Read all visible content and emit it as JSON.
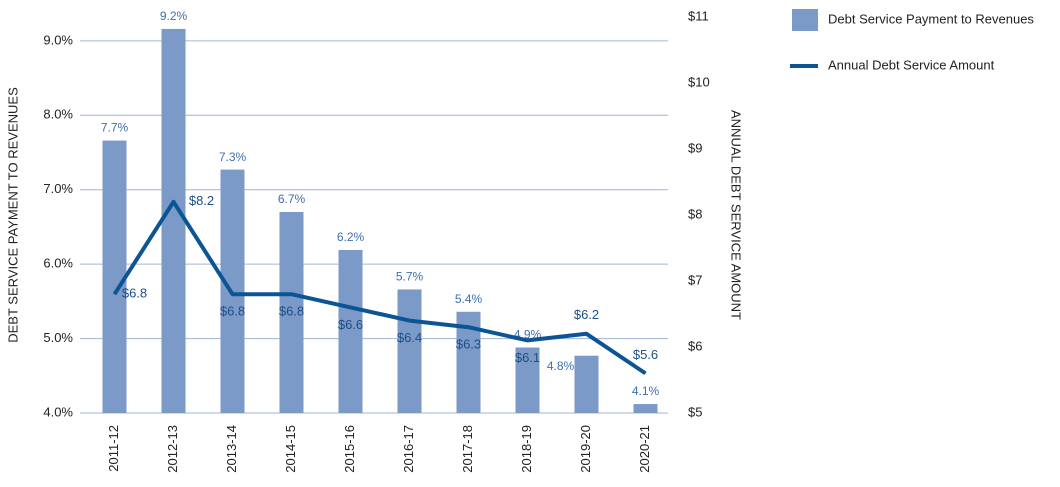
{
  "chart_data": {
    "type": "bar-line",
    "categories": [
      "2011-12",
      "2012-13",
      "2013-14",
      "2014-15",
      "2015-16",
      "2016-17",
      "2017-18",
      "2018-19",
      "2019-20",
      "2020-21"
    ],
    "y_label": "DEBT SERVICE PAYMENT TO REVENUES",
    "y2_label": "ANNUAL DEBT SERVICE AMOUNT",
    "ylim": [
      4,
      9.32
    ],
    "yticks": [
      {
        "value": 4,
        "label": "4.0%"
      },
      {
        "value": 5,
        "label": "5.0%"
      },
      {
        "value": 6,
        "label": "6.0%"
      },
      {
        "value": 7,
        "label": "7.0%"
      },
      {
        "value": 8,
        "label": "8.0%"
      },
      {
        "value": 9,
        "label": "9.0%"
      }
    ],
    "y2lim": [
      5,
      11
    ],
    "y2ticks": [
      {
        "value": 5,
        "label": "$5"
      },
      {
        "value": 6,
        "label": "$6"
      },
      {
        "value": 7,
        "label": "$7"
      },
      {
        "value": 8,
        "label": "$8"
      },
      {
        "value": 9,
        "label": "$9"
      },
      {
        "value": 10,
        "label": "$10"
      },
      {
        "value": 11,
        "label": "$11"
      }
    ],
    "grid": true,
    "legend": "top-right",
    "series": [
      {
        "name": "Debt Service Payment to Revenues",
        "type": "bar",
        "color": "#7b9ac8",
        "values": [
          7.66,
          9.16,
          7.27,
          6.7,
          6.19,
          5.66,
          5.36,
          4.88,
          4.77,
          4.12
        ],
        "value_labels": [
          "7.7%",
          "9.2%",
          "7.3%",
          "6.7%",
          "6.2%",
          "5.7%",
          "5.4%",
          "4.9%",
          "4.8%",
          "4.1%"
        ]
      },
      {
        "name": "Annual Debt Service Amount",
        "type": "line",
        "axis": "y2",
        "color": "#0d5494",
        "values": [
          6.8,
          8.2,
          6.8,
          6.8,
          6.6,
          6.4,
          6.3,
          6.1,
          6.2,
          5.6
        ],
        "value_labels": [
          "$6.8",
          "$8.2",
          "$6.8",
          "$6.8",
          "$6.6",
          "$6.4",
          "$6.3",
          "$6.1",
          "$6.2",
          "$5.6"
        ]
      }
    ]
  }
}
